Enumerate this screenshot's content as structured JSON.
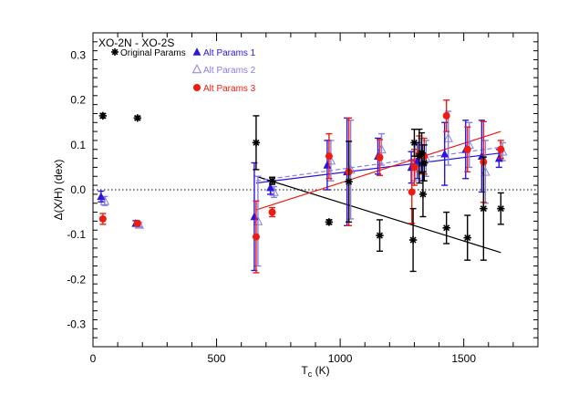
{
  "chart_data": {
    "type": "scatter",
    "annotation": "XO-2N - XO-2S",
    "xlabel": "T",
    "xlabel_sub": "c",
    "xlabel_unit": " (K)",
    "ylabel": "Δ(X/H) (dex)",
    "xlim": [
      0,
      1800
    ],
    "ylim": [
      -0.35,
      0.35
    ],
    "xticks": [
      0,
      500,
      1000,
      1500
    ],
    "yticks": [
      -0.3,
      -0.2,
      -0.1,
      0.0,
      0.1,
      0.2,
      0.3
    ],
    "ytick_labels": [
      "-0.3",
      "-0.2",
      "-0.1",
      "0.0",
      "0.1",
      "0.2",
      "0.3"
    ],
    "zero_line": true,
    "colors": {
      "original": "#000000",
      "alt1": "#2b14e0",
      "alt2": "#8a7fe0",
      "alt3": "#ee1c10"
    },
    "series": [
      {
        "key": "original",
        "name": "Original Params",
        "marker": "asterisk",
        "points": [
          {
            "x": 40,
            "y": 0.165,
            "err": 0.005
          },
          {
            "x": 180,
            "y": 0.16,
            "err": 0.004
          },
          {
            "x": 660,
            "y": 0.105,
            "err": 0.06
          },
          {
            "x": 725,
            "y": 0.02,
            "err": 0.008
          },
          {
            "x": 955,
            "y": -0.072,
            "err": 0.005
          },
          {
            "x": 1035,
            "y": 0.018,
            "err": 0.09
          },
          {
            "x": 1160,
            "y": -0.102,
            "err": 0.035
          },
          {
            "x": 1295,
            "y": -0.112,
            "err": 0.07
          },
          {
            "x": 1300,
            "y": 0.105,
            "err": 0.03
          },
          {
            "x": 1320,
            "y": 0.075,
            "err": 0.06
          },
          {
            "x": 1330,
            "y": 0.082,
            "err": 0.045
          },
          {
            "x": 1335,
            "y": -0.01,
            "err": 0.05
          },
          {
            "x": 1340,
            "y": 0.06,
            "err": 0.04
          },
          {
            "x": 1430,
            "y": -0.085,
            "err": 0.035
          },
          {
            "x": 1515,
            "y": -0.107,
            "err": 0.05
          },
          {
            "x": 1580,
            "y": -0.042,
            "err": 0.115
          },
          {
            "x": 1650,
            "y": -0.042,
            "err": 0.035
          }
        ],
        "fit": {
          "x1": 660,
          "y1": 0.03,
          "x2": 1650,
          "y2": -0.14
        }
      },
      {
        "key": "alt1",
        "name": "Alt Params 1",
        "marker": "filled-triangle",
        "points": [
          {
            "x": 40,
            "y": -0.015,
            "err": 0.012
          },
          {
            "x": 180,
            "y": -0.075,
            "err": 0.006
          },
          {
            "x": 660,
            "y": -0.06,
            "err": 0.12
          },
          {
            "x": 725,
            "y": 0.005,
            "err": 0.015
          },
          {
            "x": 955,
            "y": 0.055,
            "err": 0.055
          },
          {
            "x": 1035,
            "y": 0.04,
            "err": 0.12
          },
          {
            "x": 1160,
            "y": 0.075,
            "err": 0.04
          },
          {
            "x": 1295,
            "y": 0.05,
            "err": 0.035
          },
          {
            "x": 1320,
            "y": 0.065,
            "err": 0.04
          },
          {
            "x": 1340,
            "y": 0.06,
            "err": 0.04
          },
          {
            "x": 1430,
            "y": 0.08,
            "err": 0.07
          },
          {
            "x": 1515,
            "y": 0.09,
            "err": 0.065
          },
          {
            "x": 1580,
            "y": 0.075,
            "err": 0.08
          },
          {
            "x": 1650,
            "y": 0.07,
            "err": 0.02
          }
        ],
        "fit": {
          "x1": 660,
          "y1": 0.015,
          "x2": 1650,
          "y2": 0.082
        }
      },
      {
        "key": "alt2",
        "name": "Alt Params 2",
        "marker": "open-triangle",
        "points": [
          {
            "x": 40,
            "y": -0.025,
            "err": 0.01
          },
          {
            "x": 180,
            "y": -0.078,
            "err": 0.005
          },
          {
            "x": 660,
            "y": -0.07,
            "err": 0.1
          },
          {
            "x": 725,
            "y": -0.005,
            "err": 0.012
          },
          {
            "x": 955,
            "y": 0.065,
            "err": 0.045
          },
          {
            "x": 1035,
            "y": 0.045,
            "err": 0.11
          },
          {
            "x": 1160,
            "y": 0.09,
            "err": 0.035
          },
          {
            "x": 1295,
            "y": 0.06,
            "err": 0.04
          },
          {
            "x": 1320,
            "y": 0.075,
            "err": 0.04
          },
          {
            "x": 1340,
            "y": 0.07,
            "err": 0.04
          },
          {
            "x": 1430,
            "y": 0.115,
            "err": 0.06
          },
          {
            "x": 1515,
            "y": 0.1,
            "err": 0.05
          },
          {
            "x": 1580,
            "y": 0.04,
            "err": 0.07
          },
          {
            "x": 1650,
            "y": 0.085,
            "err": 0.02
          }
        ],
        "fit": {
          "x1": 660,
          "y1": 0.02,
          "x2": 1650,
          "y2": 0.095
        }
      },
      {
        "key": "alt3",
        "name": "Alt Params 3",
        "marker": "filled-circle",
        "points": [
          {
            "x": 40,
            "y": -0.065,
            "err": 0.012
          },
          {
            "x": 180,
            "y": -0.075,
            "err": 0.005
          },
          {
            "x": 660,
            "y": -0.105,
            "err": 0.08
          },
          {
            "x": 725,
            "y": -0.05,
            "err": 0.01
          },
          {
            "x": 955,
            "y": 0.075,
            "err": 0.05
          },
          {
            "x": 1035,
            "y": 0.04,
            "err": 0.12
          },
          {
            "x": 1160,
            "y": 0.072,
            "err": 0.04
          },
          {
            "x": 1290,
            "y": -0.005,
            "err": 0.07
          },
          {
            "x": 1300,
            "y": 0.05,
            "err": 0.04
          },
          {
            "x": 1320,
            "y": 0.08,
            "err": 0.04
          },
          {
            "x": 1340,
            "y": 0.075,
            "err": 0.04
          },
          {
            "x": 1430,
            "y": 0.165,
            "err": 0.035
          },
          {
            "x": 1515,
            "y": 0.09,
            "err": 0.05
          },
          {
            "x": 1580,
            "y": 0.062,
            "err": 0.09
          },
          {
            "x": 1650,
            "y": 0.09,
            "err": 0.02
          }
        ],
        "fit": {
          "x1": 660,
          "y1": -0.045,
          "x2": 1650,
          "y2": 0.13
        }
      }
    ]
  }
}
